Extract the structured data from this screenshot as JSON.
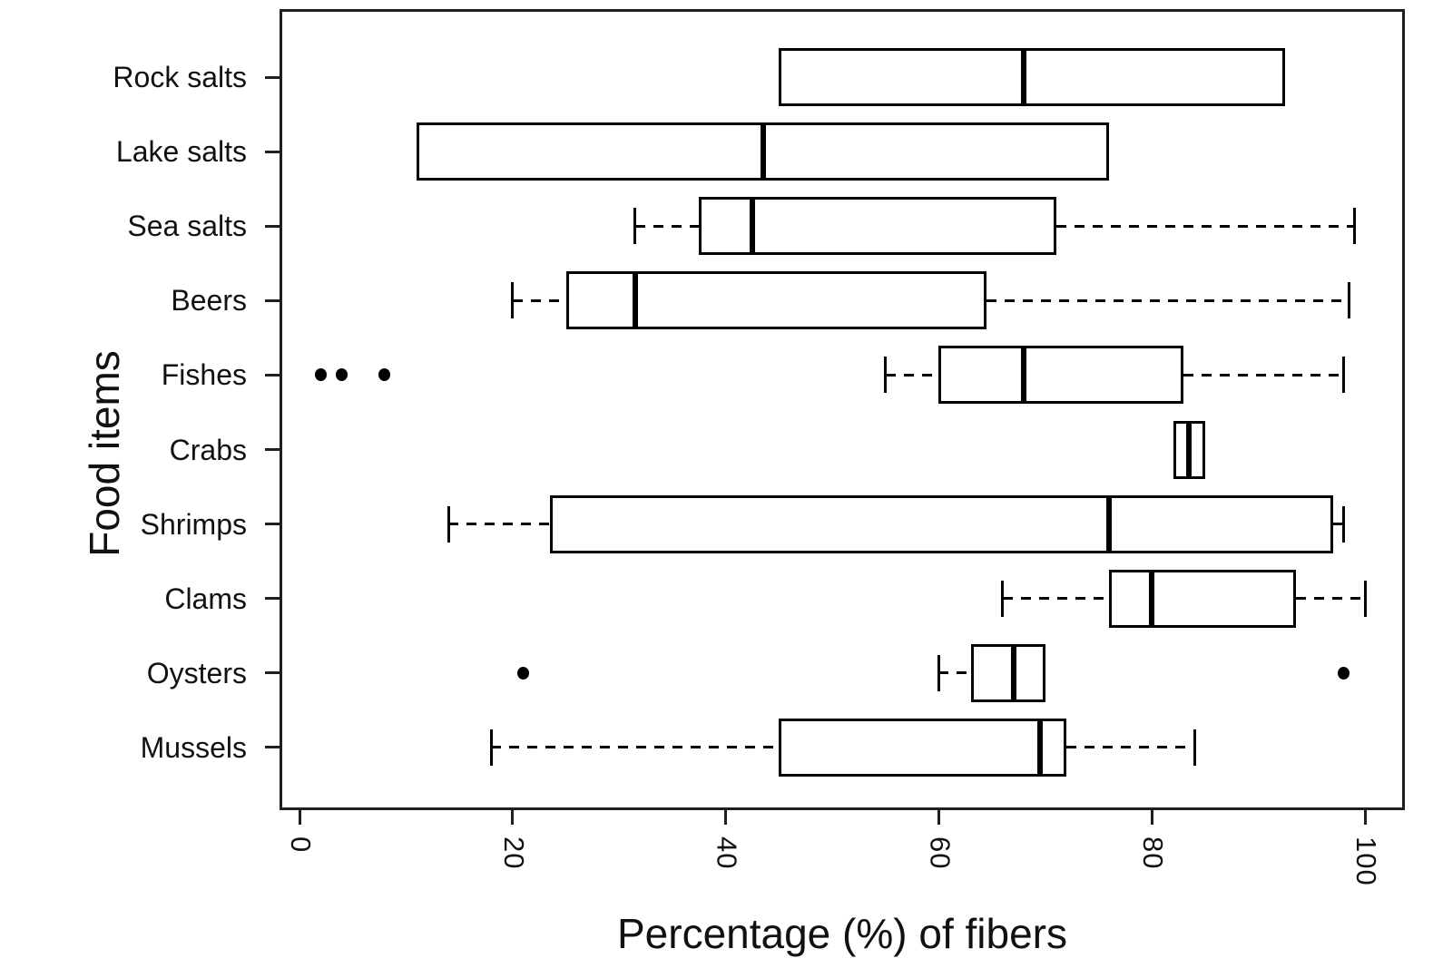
{
  "chart_data": {
    "type": "boxplot",
    "orientation": "horizontal",
    "title": "",
    "xlabel": "Percentage (%) of fibers",
    "ylabel": "Food items",
    "xlim": [
      0,
      100
    ],
    "x_ticks": [
      "0",
      "20",
      "40",
      "60",
      "80",
      "100"
    ],
    "x_tick_values": [
      0,
      20,
      40,
      60,
      80,
      100
    ],
    "grid": "off",
    "legend": "none",
    "categories": [
      "Rock salts",
      "Lake salts",
      "Sea salts",
      "Beers",
      "Fishes",
      "Crabs",
      "Shrimps",
      "Clams",
      "Oysters",
      "Mussels"
    ],
    "series": [
      {
        "name": "Rock salts",
        "whisker_low": 45,
        "q1": 45,
        "median": 68,
        "q3": 92.5,
        "whisker_high": 92.5,
        "outliers": []
      },
      {
        "name": "Lake salts",
        "whisker_low": 11,
        "q1": 11,
        "median": 43.5,
        "q3": 76,
        "whisker_high": 76,
        "outliers": []
      },
      {
        "name": "Sea salts",
        "whisker_low": 31.5,
        "q1": 37.5,
        "median": 42.5,
        "q3": 71,
        "whisker_high": 99,
        "outliers": []
      },
      {
        "name": "Beers",
        "whisker_low": 20,
        "q1": 25,
        "median": 31.5,
        "q3": 64.5,
        "whisker_high": 98.5,
        "outliers": []
      },
      {
        "name": "Fishes",
        "whisker_low": 55,
        "q1": 60,
        "median": 68,
        "q3": 83,
        "whisker_high": 98,
        "outliers": [
          2,
          4,
          8
        ]
      },
      {
        "name": "Crabs",
        "whisker_low": 82,
        "q1": 82,
        "median": 83.5,
        "q3": 85,
        "whisker_high": 85,
        "outliers": []
      },
      {
        "name": "Shrimps",
        "whisker_low": 14,
        "q1": 23.5,
        "median": 76,
        "q3": 97,
        "whisker_high": 98,
        "outliers": []
      },
      {
        "name": "Clams",
        "whisker_low": 66,
        "q1": 76,
        "median": 80,
        "q3": 93.5,
        "whisker_high": 100,
        "outliers": []
      },
      {
        "name": "Oysters",
        "whisker_low": 60,
        "q1": 63,
        "median": 67,
        "q3": 70,
        "whisker_high": 70,
        "outliers": [
          21,
          98
        ]
      },
      {
        "name": "Mussels",
        "whisker_low": 18,
        "q1": 45,
        "median": 69.5,
        "q3": 72,
        "whisker_high": 84,
        "outliers": []
      }
    ]
  }
}
